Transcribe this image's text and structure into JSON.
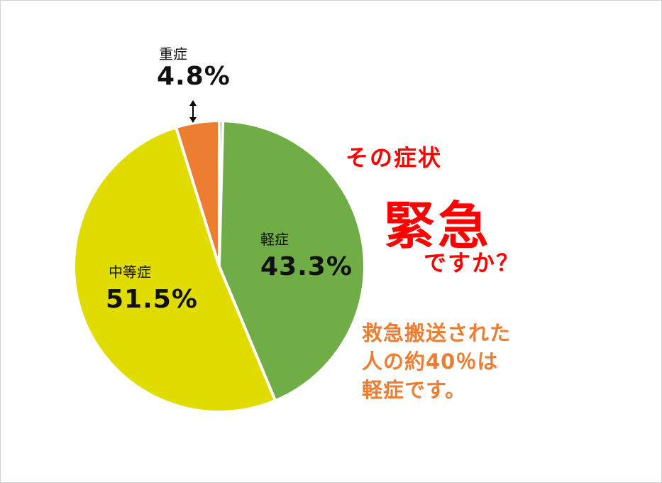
{
  "colors": {
    "severe": "#ed7d31",
    "mild": "#70ad47",
    "moderate": "#e1dc00",
    "other": "#7f7f7f",
    "headline": "#ff0000",
    "note": "#ed7d31"
  },
  "chart_data": {
    "type": "pie",
    "title": "",
    "slices": [
      {
        "label": "",
        "value": 0.4,
        "color": "#7f7f7f"
      },
      {
        "label": "軽症",
        "value": 43.3,
        "color": "#70ad47",
        "display": "43.3%"
      },
      {
        "label": "中等症",
        "value": 51.5,
        "color": "#e1dc00",
        "display": "51.5%"
      },
      {
        "label": "重症",
        "value": 4.8,
        "color": "#ed7d31",
        "display": "4.8%"
      }
    ],
    "direction": "clockwise from 12 o'clock",
    "legend": "none"
  },
  "headline": {
    "line1": "その症状",
    "line2": "緊急",
    "line3": "ですか？"
  },
  "note": {
    "line1": "救急搬送された",
    "line2": "人の約40％は",
    "line3": "軽症です。"
  }
}
